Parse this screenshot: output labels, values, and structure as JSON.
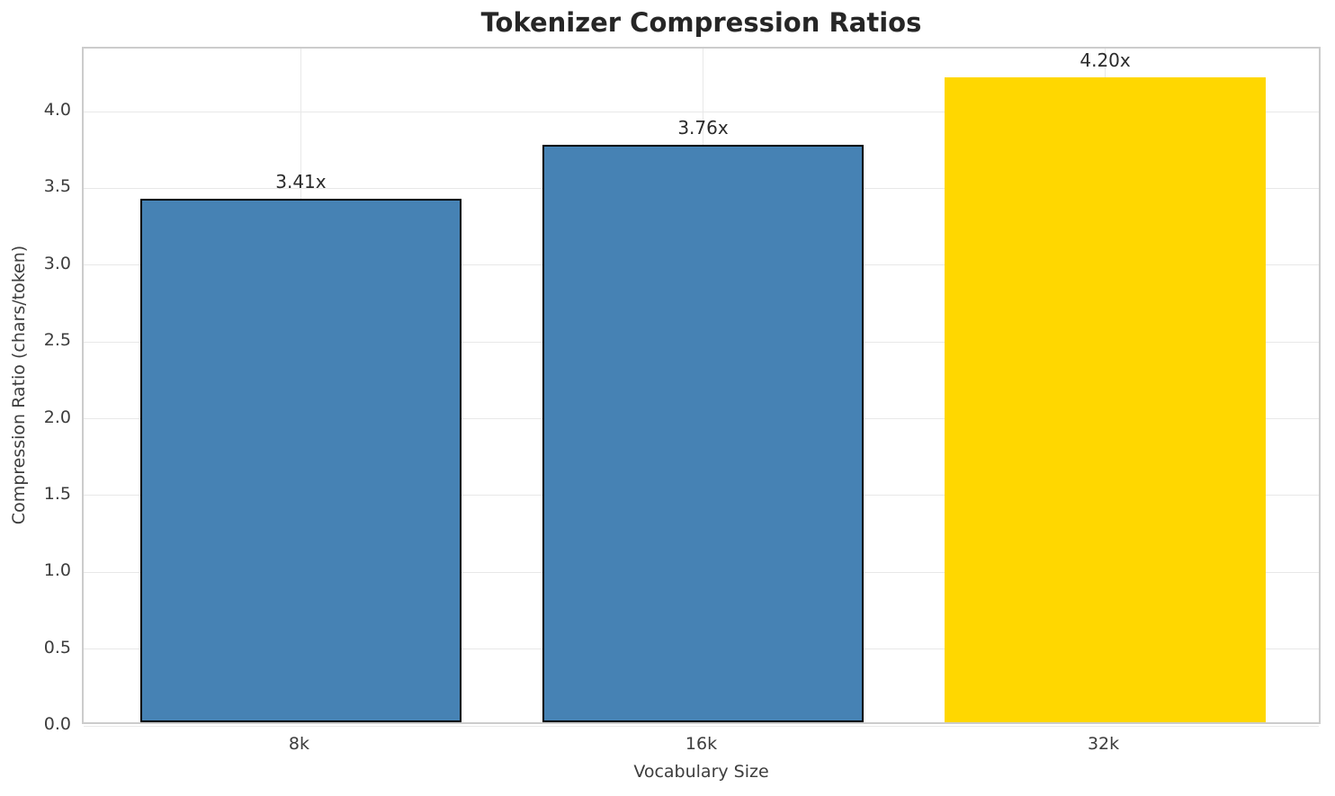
{
  "chart_data": {
    "type": "bar",
    "title": "Tokenizer Compression Ratios",
    "xlabel": "Vocabulary Size",
    "ylabel": "Compression Ratio (chars/token)",
    "categories": [
      "8k",
      "16k",
      "32k"
    ],
    "values": [
      3.41,
      3.76,
      4.2
    ],
    "bar_labels": [
      "3.41x",
      "3.76x",
      "4.20x"
    ],
    "bar_colors": [
      "#4682b4",
      "#4682b4",
      "#ffd700"
    ],
    "bar_edge_colors": [
      "#000000",
      "#000000",
      "none"
    ],
    "bar_width_fraction": 0.8,
    "ylim": [
      0,
      4.41
    ],
    "yticks": [
      "0.0",
      "0.5",
      "1.0",
      "1.5",
      "2.0",
      "2.5",
      "3.0",
      "3.5",
      "4.0"
    ],
    "grid": true,
    "grid_color": "#e8e8e8",
    "spine_color": "#cccccc",
    "background": "#ffffff",
    "legend": "none"
  }
}
